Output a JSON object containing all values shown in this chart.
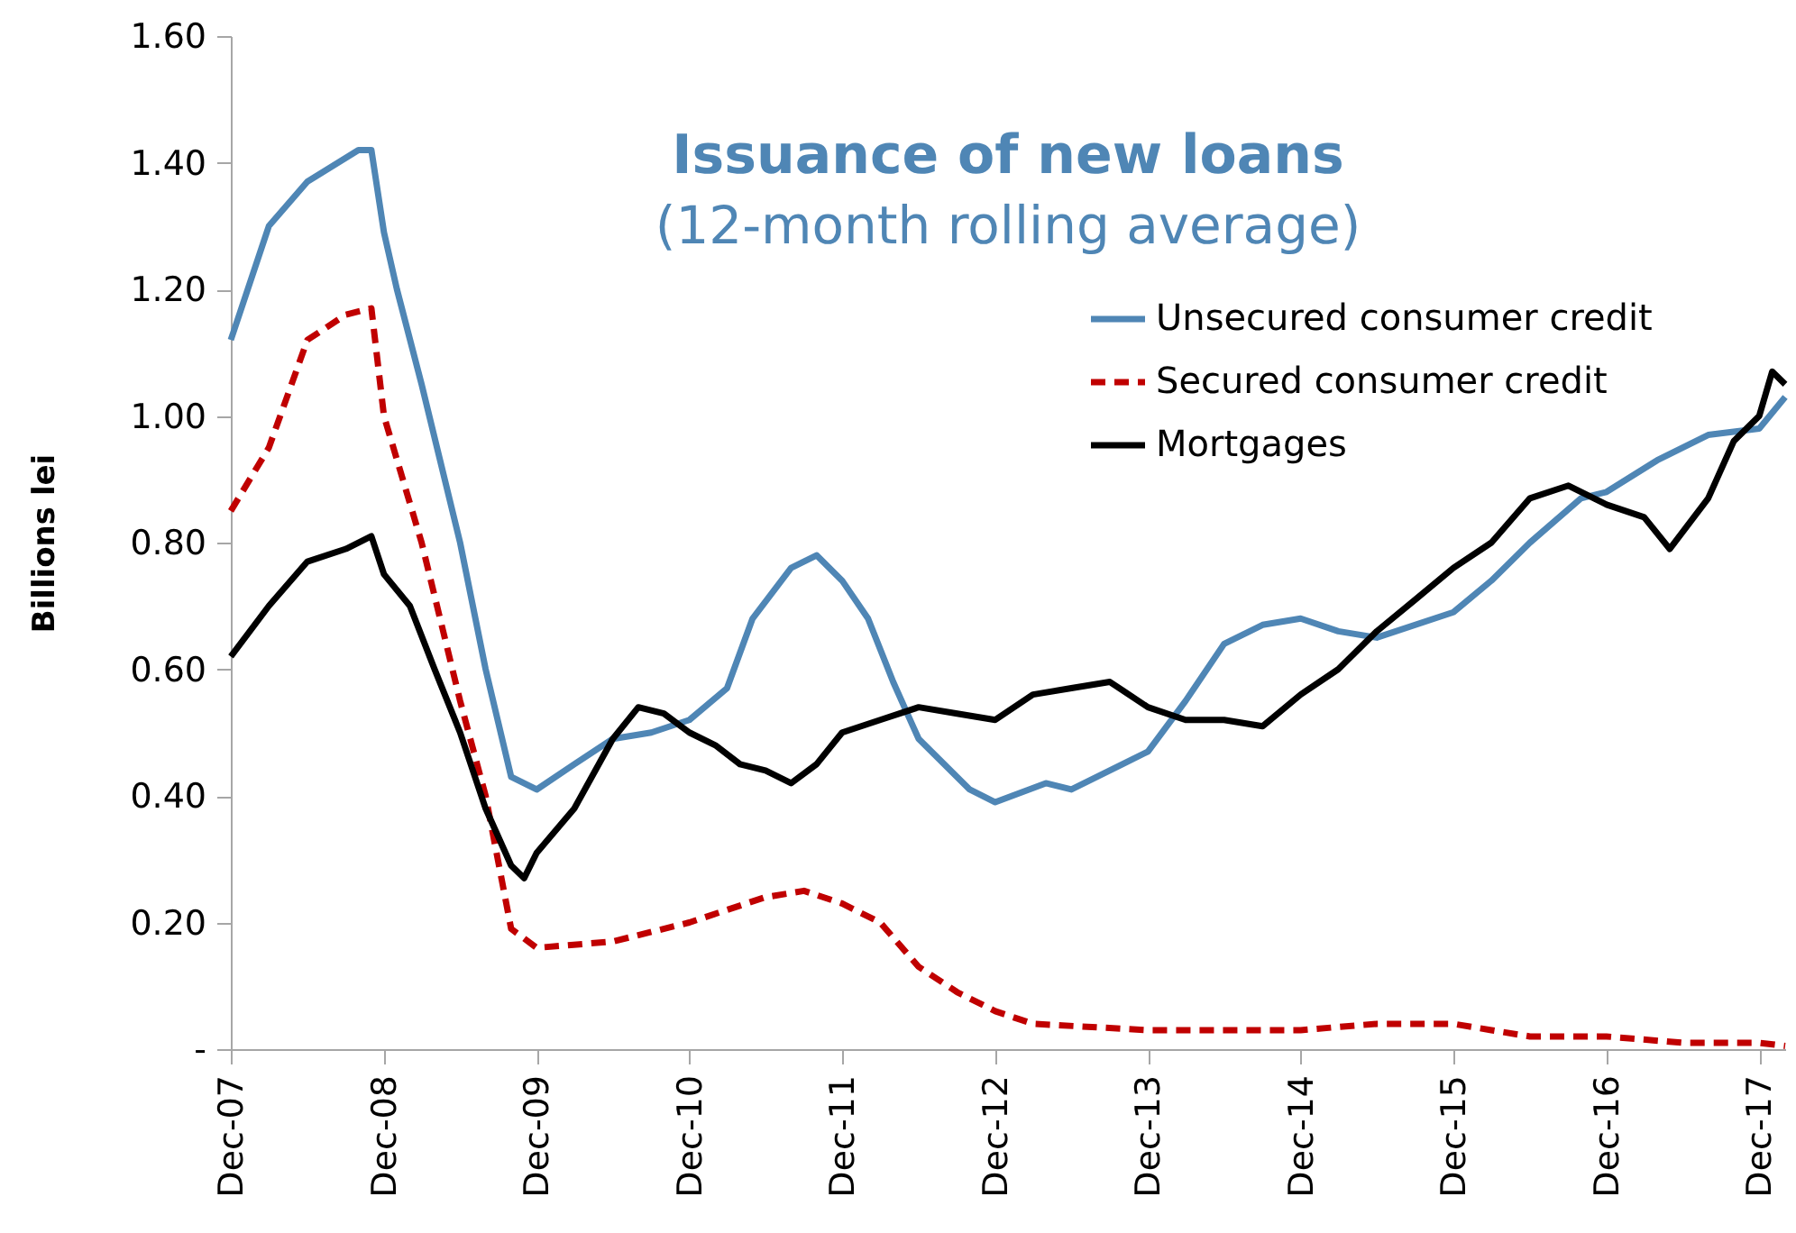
{
  "chart_data": {
    "type": "line",
    "title": "Issuance of new loans",
    "subtitle": "(12-month rolling average)",
    "ylabel": "Billions lei",
    "xlim": [
      "2007-12",
      "2018-02"
    ],
    "xticks": [
      {
        "value": "2007-12",
        "label": "Dec-07"
      },
      {
        "value": "2008-12",
        "label": "Dec-08"
      },
      {
        "value": "2009-12",
        "label": "Dec-09"
      },
      {
        "value": "2010-12",
        "label": "Dec-10"
      },
      {
        "value": "2011-12",
        "label": "Dec-11"
      },
      {
        "value": "2012-12",
        "label": "Dec-12"
      },
      {
        "value": "2013-12",
        "label": "Dec-13"
      },
      {
        "value": "2014-12",
        "label": "Dec-14"
      },
      {
        "value": "2015-12",
        "label": "Dec-15"
      },
      {
        "value": "2016-12",
        "label": "Dec-16"
      },
      {
        "value": "2017-12",
        "label": "Dec-17"
      }
    ],
    "ylim": [
      0,
      1.6
    ],
    "yticks": [
      {
        "value": 0,
        "label": "-"
      },
      {
        "value": 0.2,
        "label": "0.20"
      },
      {
        "value": 0.4,
        "label": "0.40"
      },
      {
        "value": 0.6,
        "label": "0.60"
      },
      {
        "value": 0.8,
        "label": "0.80"
      },
      {
        "value": 1.0,
        "label": "1.00"
      },
      {
        "value": 1.2,
        "label": "1.20"
      },
      {
        "value": 1.4,
        "label": "1.40"
      },
      {
        "value": 1.6,
        "label": "1.60"
      }
    ],
    "grid": false,
    "legend": "top right",
    "marker": "none",
    "series": [
      {
        "name": "Unsecured consumer credit",
        "color": "#4f86b5",
        "line_style": "solid",
        "x": [
          "2007-12",
          "2008-03",
          "2008-06",
          "2008-10",
          "2008-11",
          "2008-12",
          "2009-01",
          "2009-03",
          "2009-06",
          "2009-08",
          "2009-10",
          "2009-12",
          "2010-03",
          "2010-06",
          "2010-09",
          "2010-12",
          "2011-03",
          "2011-05",
          "2011-08",
          "2011-10",
          "2011-12",
          "2012-02",
          "2012-04",
          "2012-06",
          "2012-10",
          "2012-12",
          "2013-04",
          "2013-06",
          "2013-10",
          "2013-12",
          "2014-03",
          "2014-06",
          "2014-09",
          "2014-12",
          "2015-03",
          "2015-06",
          "2015-12",
          "2016-03",
          "2016-06",
          "2016-10",
          "2016-12",
          "2017-04",
          "2017-08",
          "2017-12",
          "2018-02"
        ],
        "values": [
          1.12,
          1.3,
          1.37,
          1.42,
          1.42,
          1.29,
          1.2,
          1.05,
          0.8,
          0.6,
          0.43,
          0.41,
          0.45,
          0.49,
          0.5,
          0.52,
          0.57,
          0.68,
          0.76,
          0.78,
          0.74,
          0.68,
          0.58,
          0.49,
          0.41,
          0.39,
          0.42,
          0.41,
          0.45,
          0.47,
          0.55,
          0.64,
          0.67,
          0.68,
          0.66,
          0.65,
          0.69,
          0.74,
          0.8,
          0.87,
          0.88,
          0.93,
          0.97,
          0.98,
          1.03
        ]
      },
      {
        "name": "Secured consumer credit",
        "color": "#c00000",
        "line_style": "dashed",
        "x": [
          "2007-12",
          "2008-03",
          "2008-06",
          "2008-09",
          "2008-11",
          "2008-12",
          "2009-03",
          "2009-06",
          "2009-08",
          "2009-10",
          "2009-12",
          "2010-06",
          "2010-12",
          "2011-03",
          "2011-06",
          "2011-09",
          "2011-12",
          "2012-03",
          "2012-06",
          "2012-09",
          "2012-12",
          "2013-03",
          "2013-12",
          "2014-12",
          "2015-06",
          "2015-12",
          "2016-03",
          "2016-06",
          "2016-12",
          "2017-06",
          "2017-12",
          "2018-02"
        ],
        "values": [
          0.85,
          0.95,
          1.12,
          1.16,
          1.17,
          1.0,
          0.8,
          0.55,
          0.4,
          0.19,
          0.16,
          0.17,
          0.2,
          0.22,
          0.24,
          0.25,
          0.23,
          0.2,
          0.13,
          0.09,
          0.06,
          0.04,
          0.03,
          0.03,
          0.04,
          0.04,
          0.03,
          0.02,
          0.02,
          0.01,
          0.01,
          0.005
        ]
      },
      {
        "name": "Mortgages",
        "color": "#000000",
        "line_style": "solid",
        "x": [
          "2007-12",
          "2008-03",
          "2008-06",
          "2008-09",
          "2008-11",
          "2008-12",
          "2009-02",
          "2009-04",
          "2009-06",
          "2009-08",
          "2009-10",
          "2009-11",
          "2009-12",
          "2010-03",
          "2010-06",
          "2010-08",
          "2010-10",
          "2010-12",
          "2011-02",
          "2011-04",
          "2011-06",
          "2011-08",
          "2011-10",
          "2011-12",
          "2012-03",
          "2012-06",
          "2012-09",
          "2012-12",
          "2013-03",
          "2013-06",
          "2013-09",
          "2013-12",
          "2014-03",
          "2014-06",
          "2014-09",
          "2014-12",
          "2015-03",
          "2015-06",
          "2015-09",
          "2015-12",
          "2016-03",
          "2016-06",
          "2016-09",
          "2016-12",
          "2017-03",
          "2017-05",
          "2017-08",
          "2017-10",
          "2017-12",
          "2018-01",
          "2018-02"
        ],
        "values": [
          0.62,
          0.7,
          0.77,
          0.79,
          0.81,
          0.75,
          0.7,
          0.6,
          0.5,
          0.38,
          0.29,
          0.27,
          0.31,
          0.38,
          0.49,
          0.54,
          0.53,
          0.5,
          0.48,
          0.45,
          0.44,
          0.42,
          0.45,
          0.5,
          0.52,
          0.54,
          0.53,
          0.52,
          0.56,
          0.57,
          0.58,
          0.54,
          0.52,
          0.52,
          0.51,
          0.56,
          0.6,
          0.66,
          0.71,
          0.76,
          0.8,
          0.87,
          0.89,
          0.86,
          0.84,
          0.79,
          0.87,
          0.96,
          1.0,
          1.07,
          1.05
        ]
      }
    ]
  }
}
